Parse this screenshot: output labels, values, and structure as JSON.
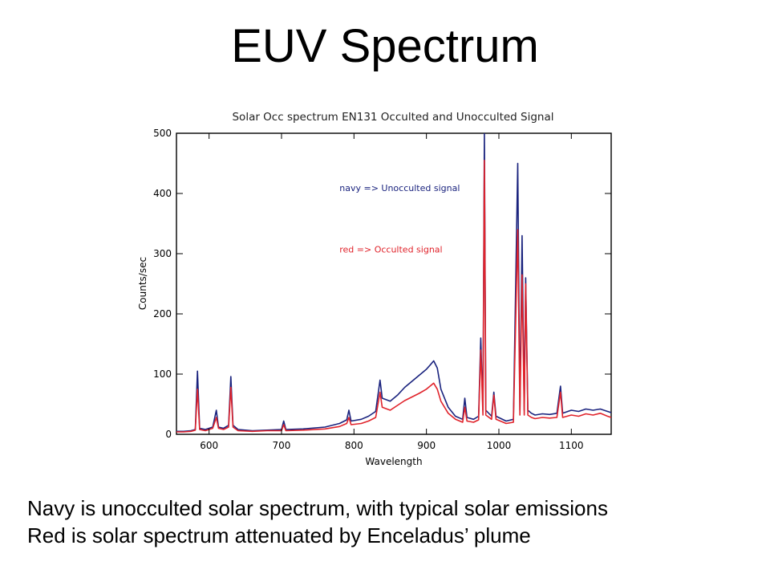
{
  "slide": {
    "title": "EUV Spectrum",
    "captions": [
      "Navy is unocculted solar spectrum, with typical solar emissions",
      "Red is solar spectrum attenuated by Enceladus’ plume"
    ]
  },
  "chart_data": {
    "type": "line",
    "title": "Solar Occ spectrum EN131 Occulted and Unocculted Signal",
    "xlabel": "Wavelength",
    "ylabel": "Counts/sec",
    "xlim": [
      555,
      1155
    ],
    "ylim": [
      0,
      500
    ],
    "xticks": [
      600,
      700,
      800,
      900,
      1000,
      1100
    ],
    "yticks": [
      0,
      100,
      200,
      300,
      400,
      500
    ],
    "grid": false,
    "annotations": [
      {
        "text": "navy => Unocculted signal",
        "color": "#1a237e",
        "x": 780,
        "y": 404
      },
      {
        "text": "red => Occulted signal",
        "color": "#e0232b",
        "x": 780,
        "y": 302
      }
    ],
    "series": [
      {
        "name": "Unocculted signal",
        "color": "#1a237e",
        "points": [
          [
            555,
            5
          ],
          [
            565,
            5
          ],
          [
            575,
            6
          ],
          [
            581,
            8
          ],
          [
            584,
            105
          ],
          [
            587,
            10
          ],
          [
            595,
            8
          ],
          [
            605,
            12
          ],
          [
            610,
            40
          ],
          [
            613,
            12
          ],
          [
            620,
            10
          ],
          [
            627,
            15
          ],
          [
            630,
            96
          ],
          [
            633,
            15
          ],
          [
            640,
            8
          ],
          [
            660,
            6
          ],
          [
            680,
            7
          ],
          [
            700,
            8
          ],
          [
            703,
            22
          ],
          [
            706,
            8
          ],
          [
            730,
            9
          ],
          [
            760,
            12
          ],
          [
            780,
            18
          ],
          [
            790,
            24
          ],
          [
            793,
            40
          ],
          [
            796,
            22
          ],
          [
            810,
            25
          ],
          [
            820,
            30
          ],
          [
            830,
            38
          ],
          [
            836,
            90
          ],
          [
            839,
            60
          ],
          [
            850,
            55
          ],
          [
            860,
            65
          ],
          [
            870,
            78
          ],
          [
            880,
            88
          ],
          [
            890,
            98
          ],
          [
            900,
            108
          ],
          [
            905,
            115
          ],
          [
            910,
            122
          ],
          [
            915,
            110
          ],
          [
            920,
            75
          ],
          [
            930,
            45
          ],
          [
            940,
            30
          ],
          [
            950,
            25
          ],
          [
            953,
            60
          ],
          [
            956,
            28
          ],
          [
            965,
            25
          ],
          [
            972,
            30
          ],
          [
            975,
            160
          ],
          [
            978,
            40
          ],
          [
            980,
            500
          ],
          [
            982,
            40
          ],
          [
            990,
            30
          ],
          [
            993,
            70
          ],
          [
            996,
            30
          ],
          [
            1010,
            22
          ],
          [
            1020,
            25
          ],
          [
            1026,
            450
          ],
          [
            1029,
            40
          ],
          [
            1032,
            330
          ],
          [
            1035,
            40
          ],
          [
            1037,
            260
          ],
          [
            1040,
            40
          ],
          [
            1045,
            35
          ],
          [
            1050,
            32
          ],
          [
            1060,
            34
          ],
          [
            1070,
            33
          ],
          [
            1080,
            35
          ],
          [
            1085,
            80
          ],
          [
            1088,
            35
          ],
          [
            1100,
            40
          ],
          [
            1110,
            38
          ],
          [
            1120,
            42
          ],
          [
            1130,
            40
          ],
          [
            1140,
            42
          ],
          [
            1150,
            38
          ],
          [
            1155,
            36
          ]
        ]
      },
      {
        "name": "Occulted signal",
        "color": "#e0232b",
        "points": [
          [
            555,
            4
          ],
          [
            565,
            4
          ],
          [
            575,
            5
          ],
          [
            581,
            7
          ],
          [
            584,
            75
          ],
          [
            587,
            8
          ],
          [
            595,
            6
          ],
          [
            605,
            10
          ],
          [
            610,
            28
          ],
          [
            613,
            10
          ],
          [
            620,
            8
          ],
          [
            627,
            12
          ],
          [
            630,
            78
          ],
          [
            633,
            12
          ],
          [
            640,
            6
          ],
          [
            660,
            5
          ],
          [
            680,
            6
          ],
          [
            700,
            6
          ],
          [
            703,
            16
          ],
          [
            706,
            6
          ],
          [
            730,
            7
          ],
          [
            760,
            9
          ],
          [
            780,
            13
          ],
          [
            790,
            18
          ],
          [
            793,
            28
          ],
          [
            796,
            16
          ],
          [
            810,
            18
          ],
          [
            820,
            22
          ],
          [
            830,
            28
          ],
          [
            836,
            70
          ],
          [
            839,
            45
          ],
          [
            850,
            40
          ],
          [
            860,
            48
          ],
          [
            870,
            56
          ],
          [
            880,
            62
          ],
          [
            890,
            68
          ],
          [
            900,
            75
          ],
          [
            905,
            80
          ],
          [
            910,
            85
          ],
          [
            915,
            75
          ],
          [
            920,
            55
          ],
          [
            930,
            35
          ],
          [
            940,
            25
          ],
          [
            950,
            20
          ],
          [
            953,
            45
          ],
          [
            956,
            22
          ],
          [
            965,
            20
          ],
          [
            972,
            24
          ],
          [
            975,
            140
          ],
          [
            978,
            32
          ],
          [
            980,
            455
          ],
          [
            982,
            32
          ],
          [
            990,
            25
          ],
          [
            993,
            65
          ],
          [
            996,
            25
          ],
          [
            1010,
            18
          ],
          [
            1020,
            20
          ],
          [
            1026,
            340
          ],
          [
            1029,
            32
          ],
          [
            1032,
            265
          ],
          [
            1035,
            32
          ],
          [
            1037,
            250
          ],
          [
            1040,
            32
          ],
          [
            1045,
            28
          ],
          [
            1050,
            26
          ],
          [
            1060,
            28
          ],
          [
            1070,
            27
          ],
          [
            1080,
            28
          ],
          [
            1085,
            70
          ],
          [
            1088,
            28
          ],
          [
            1100,
            32
          ],
          [
            1110,
            30
          ],
          [
            1120,
            34
          ],
          [
            1130,
            32
          ],
          [
            1140,
            35
          ],
          [
            1150,
            30
          ],
          [
            1155,
            28
          ]
        ]
      }
    ]
  }
}
